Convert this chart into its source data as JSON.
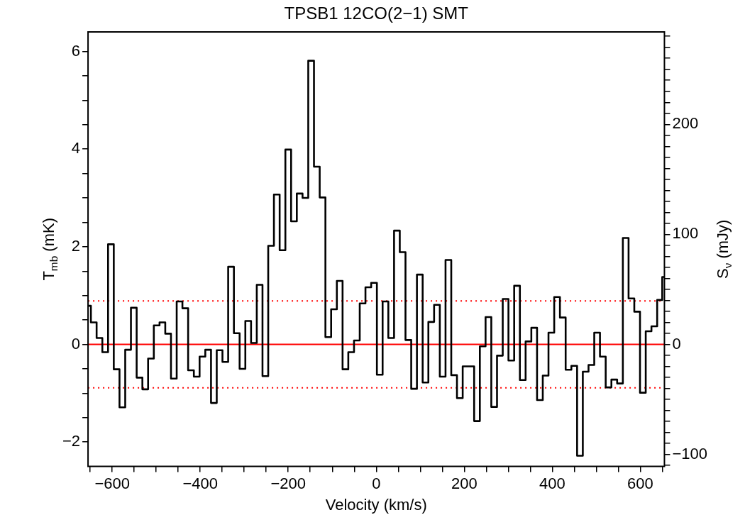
{
  "chart_data": {
    "type": "step",
    "title": "TPSB1 12CO(2−1) SMT",
    "xlabel": "Velocity (km/s)",
    "ylabel": "T$_{mb}$ (mK)",
    "y2label": "S$_{ν}$ (mJy)",
    "x": [
      -655,
      -642,
      -629,
      -616,
      -603,
      -590,
      -577,
      -564,
      -551,
      -538,
      -525,
      -512,
      -499,
      -486,
      -473,
      -460,
      -447,
      -434,
      -421,
      -408,
      -395,
      -382,
      -369,
      -356,
      -343,
      -330,
      -317,
      -304,
      -291,
      -278,
      -265,
      -252,
      -239,
      -226,
      -213,
      -200,
      -187,
      -174,
      -161,
      -148,
      -135,
      -122,
      -109,
      -96,
      -83,
      -70,
      -57,
      -44,
      -31,
      -18,
      -5,
      8,
      21,
      34,
      47,
      60,
      73,
      86,
      99,
      112,
      125,
      138,
      151,
      164,
      177,
      190,
      203,
      216,
      229,
      242,
      255,
      268,
      281,
      294,
      307,
      320,
      333,
      346,
      359,
      372,
      385,
      398,
      411,
      424,
      437,
      450,
      463,
      476,
      489,
      502,
      515,
      528,
      541,
      554,
      567,
      580,
      593,
      606,
      619,
      632,
      645,
      655
    ],
    "series": [
      {
        "color": "#000000",
        "values": [
          0.79,
          0.45,
          0.13,
          -0.16,
          2.05,
          -0.51,
          -1.29,
          -0.11,
          0.75,
          -0.68,
          -0.92,
          -0.29,
          0.39,
          0.45,
          0.22,
          -0.7,
          0.88,
          0.74,
          -0.53,
          -0.66,
          -0.25,
          -0.11,
          -1.2,
          -0.12,
          -0.36,
          1.59,
          0.23,
          -0.5,
          0.48,
          0.03,
          1.22,
          -0.65,
          2.02,
          3.07,
          1.93,
          3.99,
          2.52,
          3.09,
          3.0,
          5.81,
          3.64,
          3.01,
          0.15,
          0.72,
          1.3,
          -0.51,
          -0.16,
          0.08,
          0.84,
          1.17,
          1.26,
          -0.62,
          0.88,
          0.13,
          2.33,
          1.89,
          0.09,
          -0.91,
          1.43,
          -0.78,
          0.46,
          0.81,
          -0.66,
          1.73,
          -0.63,
          -1.1,
          -0.45,
          -0.45,
          -1.57,
          -0.04,
          0.56,
          -1.28,
          -0.23,
          0.93,
          -0.33,
          1.2,
          -0.73,
          0.06,
          0.34,
          -1.14,
          -0.64,
          0.24,
          0.97,
          0.55,
          -0.52,
          -0.44,
          -2.28,
          -0.56,
          -0.42,
          0.24,
          -0.25,
          -0.88,
          -0.72,
          -0.8,
          2.18,
          0.94,
          0.67,
          -0.99,
          0.27,
          0.37,
          0.91,
          1.38
        ]
      }
    ],
    "xlim": [
      -655,
      655
    ],
    "xticks": [
      {
        "value": -650,
        "label": null
      },
      {
        "value": -600,
        "label": "−600"
      },
      {
        "value": -550,
        "label": null
      },
      {
        "value": -500,
        "label": null
      },
      {
        "value": -450,
        "label": null
      },
      {
        "value": -400,
        "label": "−400"
      },
      {
        "value": -350,
        "label": null
      },
      {
        "value": -300,
        "label": null
      },
      {
        "value": -250,
        "label": null
      },
      {
        "value": -200,
        "label": "−200"
      },
      {
        "value": -150,
        "label": null
      },
      {
        "value": -100,
        "label": null
      },
      {
        "value": -50,
        "label": null
      },
      0,
      {
        "value": 50,
        "label": null
      },
      {
        "value": 100,
        "label": null
      },
      {
        "value": 150,
        "label": null
      },
      200,
      {
        "value": 250,
        "label": null
      },
      {
        "value": 300,
        "label": null
      },
      {
        "value": 350,
        "label": null
      },
      400,
      {
        "value": 450,
        "label": null
      },
      {
        "value": 500,
        "label": null
      },
      {
        "value": 550,
        "label": null
      },
      600,
      {
        "value": 650,
        "label": null
      }
    ],
    "ylim": [
      -2.5,
      6.4
    ],
    "yticks": [
      {
        "value": -2,
        "label": "−2"
      },
      {
        "value": -1.5,
        "label": null
      },
      {
        "value": -1,
        "label": null
      },
      {
        "value": -0.5,
        "label": null
      },
      0,
      {
        "value": 0.5,
        "label": null
      },
      {
        "value": 1,
        "label": null
      },
      {
        "value": 1.5,
        "label": null
      },
      2,
      {
        "value": 2.5,
        "label": null
      },
      {
        "value": 3,
        "label": null
      },
      {
        "value": 3.5,
        "label": null
      },
      4,
      {
        "value": 4.5,
        "label": null
      },
      {
        "value": 5,
        "label": null
      },
      {
        "value": 5.5,
        "label": null
      },
      6
    ],
    "y2lim": [
      -111,
      284
    ],
    "y2ticks": [
      {
        "value": -110,
        "label": null
      },
      {
        "value": -100,
        "label": "−100"
      },
      {
        "value": -90,
        "label": null
      },
      {
        "value": -80,
        "label": null
      },
      {
        "value": -70,
        "label": null
      },
      {
        "value": -60,
        "label": null
      },
      {
        "value": -50,
        "label": null
      },
      {
        "value": -40,
        "label": null
      },
      {
        "value": -30,
        "label": null
      },
      {
        "value": -20,
        "label": null
      },
      {
        "value": -10,
        "label": null
      },
      0,
      {
        "value": 10,
        "label": null
      },
      {
        "value": 20,
        "label": null
      },
      {
        "value": 30,
        "label": null
      },
      {
        "value": 40,
        "label": null
      },
      {
        "value": 50,
        "label": null
      },
      {
        "value": 60,
        "label": null
      },
      {
        "value": 70,
        "label": null
      },
      {
        "value": 80,
        "label": null
      },
      {
        "value": 90,
        "label": null
      },
      100,
      {
        "value": 110,
        "label": null
      },
      {
        "value": 120,
        "label": null
      },
      {
        "value": 130,
        "label": null
      },
      {
        "value": 140,
        "label": null
      },
      {
        "value": 150,
        "label": null
      },
      {
        "value": 160,
        "label": null
      },
      {
        "value": 170,
        "label": null
      },
      {
        "value": 180,
        "label": null
      },
      {
        "value": 190,
        "label": null
      },
      200,
      {
        "value": 210,
        "label": null
      },
      {
        "value": 220,
        "label": null
      },
      {
        "value": 230,
        "label": null
      },
      {
        "value": 240,
        "label": null
      },
      {
        "value": 250,
        "label": null
      },
      {
        "value": 260,
        "label": null
      },
      {
        "value": 270,
        "label": null
      },
      {
        "value": 280,
        "label": null
      }
    ],
    "ref_lines": [
      {
        "axis": "y",
        "value": 0,
        "color": "#ff0000",
        "line_style": "solid"
      },
      {
        "axis": "y",
        "value": 0.89,
        "color": "#ff0000",
        "line_style": "dotted"
      },
      {
        "axis": "y",
        "value": -0.89,
        "color": "#ff0000",
        "line_style": "dotted"
      }
    ],
    "grid": false,
    "legend": false,
    "marker": "none"
  }
}
